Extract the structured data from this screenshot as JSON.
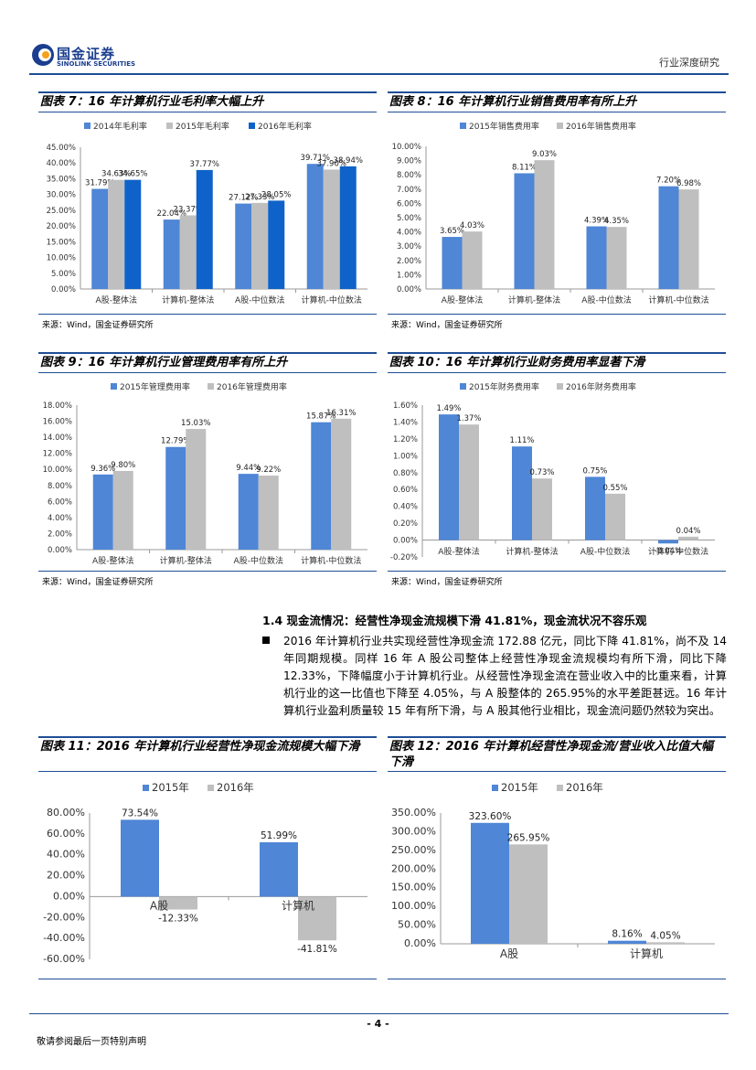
{
  "header": {
    "logo_cn": "国金证券",
    "logo_en": "SINOLINK SECURITIES",
    "report_type": "行业深度研究"
  },
  "charts_meta": {
    "source": "来源：Wind，国金证券研究所"
  },
  "colors": {
    "blue2015": "#4f86d6",
    "gray": "#bfbfbf",
    "blue2014": "#4f86d6",
    "darkblue": "#0f62c9",
    "accent": "#1f4e96"
  },
  "section": {
    "title": "1.4 现金流情况：经营性净现金流规模下滑 41.81%，现金流状况不容乐观",
    "paragraph": "2016 年计算机行业共实现经营性净现金流 172.88 亿元，同比下降 41.81%，尚不及 14 年同期规模。同样 16 年 A 股公司整体上经营性净现金流规模均有所下滑，同比下降 12.33%，下降幅度小于计算机行业。从经营性净现金流在营业收入中的比重来看，计算机行业的这一比值也下降至 4.05%，与 A 股整体的 265.95%的水平差距甚远。16 年计算机行业盈利质量较 15 年有所下滑，与 A 股其他行业相比，现金流问题仍然较为突出。"
  },
  "footer": {
    "page": "- 4 -",
    "note": "敬请参阅最后一页特别声明"
  },
  "chart_data": [
    {
      "title": "图表 7：16 年计算机行业毛利率大幅上升",
      "type": "bar",
      "categories": [
        "A股-整体法",
        "计算机-整体法",
        "A股-中位数法",
        "计算机-中位数法"
      ],
      "series": [
        {
          "name": "2014年毛利率",
          "values": [
            31.79,
            22.04,
            27.12,
            39.71
          ],
          "labels": [
            "31.79%",
            "22.04%",
            "27.12%",
            "39.71%"
          ]
        },
        {
          "name": "2015年毛利率",
          "values": [
            34.63,
            23.37,
            27.33,
            37.9
          ],
          "labels": [
            "34.63%",
            "23.37%",
            "27.33%",
            "37.90%"
          ]
        },
        {
          "name": "2016年毛利率",
          "values": [
            34.65,
            37.77,
            28.05,
            38.94
          ],
          "labels": [
            "34.65%",
            "37.77%",
            "28.05%",
            "38.94%"
          ]
        }
      ],
      "yticks": [
        "45.00%",
        "40.00%",
        "35.00%",
        "30.00%",
        "25.00%",
        "20.00%",
        "15.00%",
        "10.00%",
        "5.00%",
        "0.00%"
      ],
      "ylim": [
        0,
        45
      ]
    },
    {
      "title": "图表 8：16 年计算机行业销售费用率有所上升",
      "type": "bar",
      "categories": [
        "A股-整体法",
        "计算机-整体法",
        "A股-中位数法",
        "计算机-中位数法"
      ],
      "series": [
        {
          "name": "2015年销售费用率",
          "values": [
            3.65,
            8.11,
            4.39,
            7.2
          ],
          "labels": [
            "3.65%",
            "8.11%",
            "4.39%",
            "7.20%"
          ]
        },
        {
          "name": "2016年销售费用率",
          "values": [
            4.03,
            9.03,
            4.35,
            6.98
          ],
          "labels": [
            "4.03%",
            "9.03%",
            "4.35%",
            "6.98%"
          ]
        }
      ],
      "yticks": [
        "10.00%",
        "9.00%",
        "8.00%",
        "7.00%",
        "6.00%",
        "5.00%",
        "4.00%",
        "3.00%",
        "2.00%",
        "1.00%",
        "0.00%"
      ],
      "ylim": [
        0,
        10
      ]
    },
    {
      "title": "图表 9：16 年计算机行业管理费用率有所上升",
      "type": "bar",
      "categories": [
        "A股-整体法",
        "计算机-整体法",
        "A股-中位数法",
        "计算机-中位数法"
      ],
      "series": [
        {
          "name": "2015年管理费用率",
          "values": [
            9.36,
            12.79,
            9.44,
            15.87
          ],
          "labels": [
            "9.36%",
            "12.79%",
            "9.44%",
            "15.87%"
          ]
        },
        {
          "name": "2016年管理费用率",
          "values": [
            9.8,
            15.03,
            9.22,
            16.31
          ],
          "labels": [
            "9.80%",
            "15.03%",
            "9.22%",
            "16.31%"
          ]
        }
      ],
      "yticks": [
        "18.00%",
        "16.00%",
        "14.00%",
        "12.00%",
        "10.00%",
        "8.00%",
        "6.00%",
        "4.00%",
        "2.00%",
        "0.00%"
      ],
      "ylim": [
        0,
        18
      ]
    },
    {
      "title": "图表 10：16 年计算机行业财务费用率显著下滑",
      "type": "bar",
      "categories": [
        "A股-整体法",
        "计算机-整体法",
        "A股-中位数法",
        "计算机-中位数法"
      ],
      "series": [
        {
          "name": "2015年财务费用率",
          "values": [
            1.49,
            1.11,
            0.75,
            -0.04
          ],
          "labels": [
            "1.49%",
            "1.11%",
            "0.75%",
            "-0.04%"
          ]
        },
        {
          "name": "2016年财务费用率",
          "values": [
            1.37,
            0.73,
            0.55,
            0.04
          ],
          "labels": [
            "1.37%",
            "0.73%",
            "0.55%",
            "0.04%"
          ]
        }
      ],
      "yticks": [
        "1.60%",
        "1.40%",
        "1.20%",
        "1.00%",
        "0.80%",
        "0.60%",
        "0.40%",
        "0.20%",
        "0.00%",
        "-0.20%"
      ],
      "ylim": [
        -0.2,
        1.6
      ]
    },
    {
      "title": "图表 11：2016 年计算机行业经营性净现金流规模大幅下滑",
      "type": "bar",
      "categories": [
        "A股",
        "计算机"
      ],
      "series": [
        {
          "name": "2015年",
          "values": [
            73.54,
            51.99
          ],
          "labels": [
            "73.54%",
            "51.99%"
          ]
        },
        {
          "name": "2016年",
          "values": [
            -12.33,
            -41.81
          ],
          "labels": [
            "-12.33%",
            "-41.81%"
          ]
        }
      ],
      "yticks": [
        "80.00%",
        "60.00%",
        "40.00%",
        "20.00%",
        "0.00%",
        "-20.00%",
        "-40.00%",
        "-60.00%"
      ],
      "ylim": [
        -60,
        80
      ]
    },
    {
      "title": "图表 12：2016 年计算机经营性净现金流/营业收入比值大幅下滑",
      "type": "bar",
      "categories": [
        "A股",
        "计算机"
      ],
      "series": [
        {
          "name": "2015年",
          "values": [
            323.6,
            8.16
          ],
          "labels": [
            "323.60%",
            "8.16%"
          ]
        },
        {
          "name": "2016年",
          "values": [
            265.95,
            4.05
          ],
          "labels": [
            "265.95%",
            "4.05%"
          ]
        }
      ],
      "yticks": [
        "350.00%",
        "300.00%",
        "250.00%",
        "200.00%",
        "150.00%",
        "100.00%",
        "50.00%",
        "0.00%"
      ],
      "ylim": [
        0,
        350
      ]
    }
  ]
}
